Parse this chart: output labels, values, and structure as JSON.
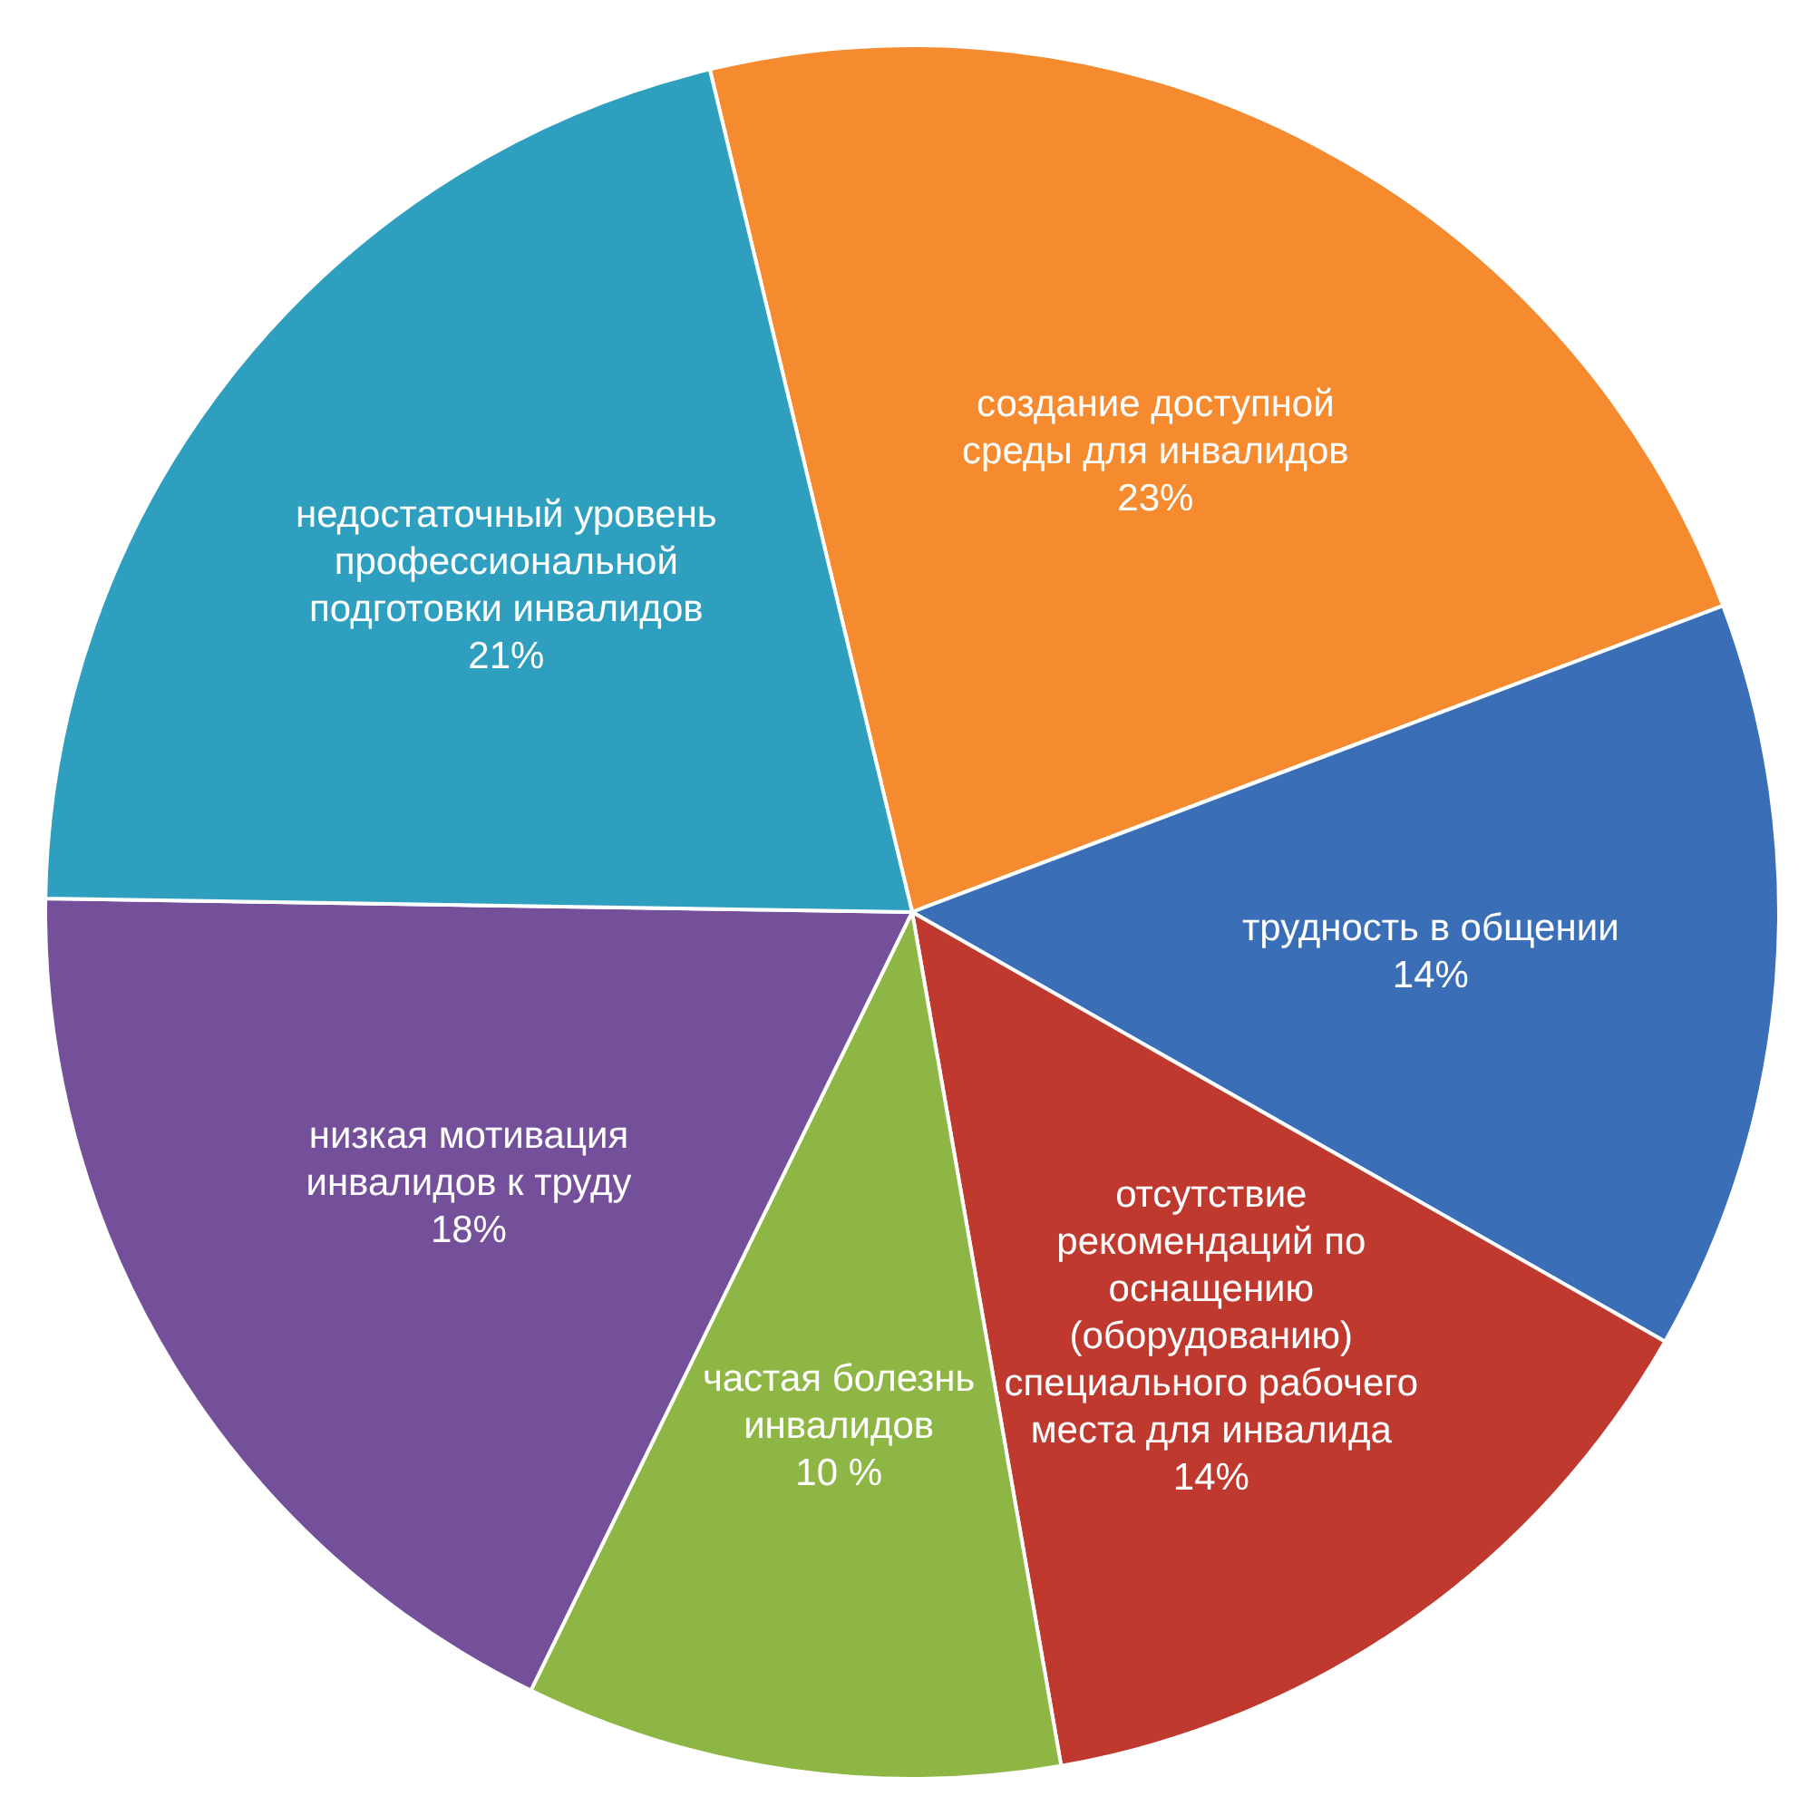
{
  "chart_data": {
    "type": "pie",
    "categories": [
      "создание доступной среды для инвалидов",
      "трудность в общении",
      "отсутствие рекомендаций по оснащению (оборудованию) специального рабочего места для инвалида",
      "частая болезнь инвалидов",
      "низкая мотивация инвалидов к труду",
      "недостаточный уровень профессиональной подготовки инвалидов"
    ],
    "values": [
      23,
      14,
      14,
      10,
      18,
      21
    ],
    "value_labels": [
      "23%",
      "14%",
      "14%",
      "10 %",
      "18%",
      "21%"
    ],
    "colors": [
      "#f58a2e",
      "#3a6fb8",
      "#c0392f",
      "#8db644",
      "#74509a",
      "#2e9fbf"
    ],
    "data_labels": true
  }
}
